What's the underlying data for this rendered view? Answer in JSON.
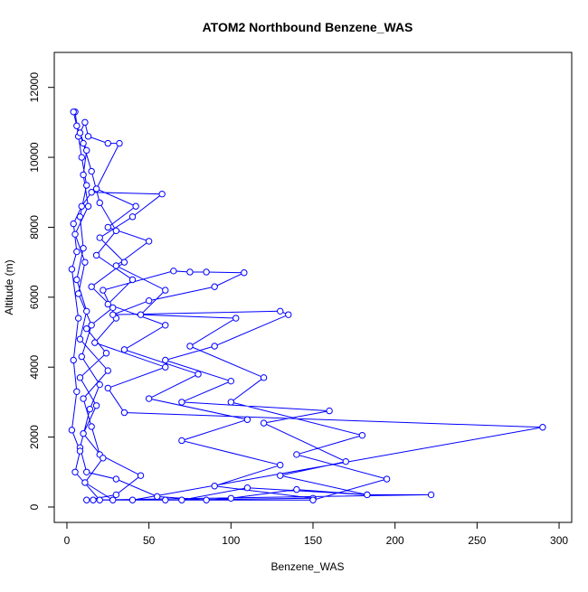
{
  "chart_data": {
    "type": "line",
    "markers": "circle",
    "title": "ATOM2 Northbound Benzene_WAS",
    "x_label": "Benzene_WAS",
    "y_label": "Altitude (m)",
    "xlim": [
      -7.7,
      307.7
    ],
    "ylim": [
      -440,
      13000
    ],
    "xticks": [
      0,
      50,
      100,
      150,
      200,
      250,
      300
    ],
    "yticks": [
      0,
      2000,
      4000,
      6000,
      8000,
      10000,
      12000
    ],
    "series": [
      {
        "color": "#0000ff",
        "x": [
          12,
          30,
          45,
          20,
          15,
          10,
          25,
          8,
          12,
          6,
          10,
          8,
          12,
          9,
          7,
          5,
          4,
          6,
          10,
          15,
          20,
          30,
          18,
          40,
          25,
          60,
          35,
          80,
          50,
          110,
          70,
          130,
          90,
          150,
          60,
          16,
          222,
          183,
          140,
          100,
          85,
          55,
          30,
          12,
          8,
          14,
          20,
          9,
          15,
          7,
          11,
          5,
          13,
          10,
          12,
          8,
          11,
          13,
          25,
          32,
          18,
          42,
          25,
          50,
          30,
          60,
          45,
          103,
          75,
          120,
          100,
          180,
          140,
          195,
          150,
          40,
          290,
          35,
          25,
          60,
          17,
          30,
          22,
          65,
          75,
          85,
          108,
          90,
          50,
          28,
          130,
          135,
          90,
          60,
          100,
          70,
          160,
          120,
          170,
          130,
          183,
          110,
          70,
          20,
          5,
          8,
          3,
          6,
          4,
          7,
          3,
          6,
          4,
          9,
          15,
          58,
          40,
          20,
          35,
          15,
          28,
          12,
          24,
          8,
          18,
          10,
          22,
          11,
          28
        ],
        "values": [
          200,
          350,
          900,
          1500,
          2300,
          3100,
          3900,
          4800,
          5600,
          6500,
          7400,
          8300,
          9200,
          10000,
          10600,
          11300,
          11300,
          10900,
          10400,
          9600,
          8700,
          7900,
          7200,
          6500,
          5800,
          5200,
          4500,
          3800,
          3100,
          2500,
          1900,
          1200,
          600,
          250,
          200,
          200,
          350,
          350,
          500,
          250,
          200,
          300,
          800,
          1000,
          1700,
          2800,
          3500,
          4300,
          5200,
          6100,
          7000,
          7800,
          8600,
          9500,
          10200,
          10700,
          11000,
          10600,
          10400,
          10400,
          9100,
          8600,
          8000,
          7600,
          6900,
          6200,
          5500,
          5400,
          4600,
          3700,
          3000,
          2050,
          1500,
          800,
          200,
          200,
          2280,
          2700,
          3400,
          4000,
          4700,
          5400,
          6200,
          6750,
          6720,
          6720,
          6700,
          6300,
          5900,
          5500,
          5600,
          5500,
          4600,
          4200,
          3600,
          3000,
          2750,
          2400,
          1300,
          900,
          350,
          550,
          200,
          200,
          1000,
          1600,
          2200,
          3300,
          4200,
          5400,
          6800,
          7300,
          8100,
          8600,
          9000,
          8950,
          8300,
          7700,
          7000,
          6300,
          5700,
          5100,
          4400,
          3700,
          2900,
          2100,
          1400,
          700,
          200
        ]
      }
    ]
  }
}
